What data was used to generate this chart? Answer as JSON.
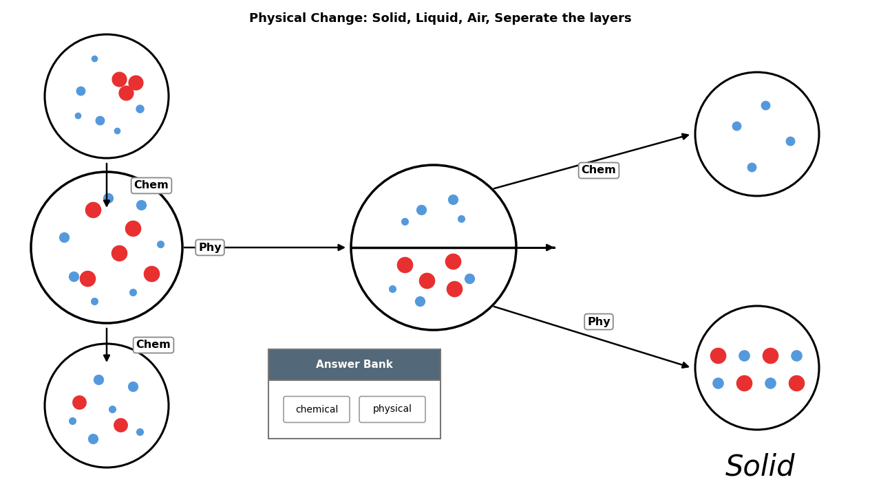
{
  "title": "Physical Change: Solid, Liquid, Air, Seperate the layers",
  "title_fontsize": 13,
  "background_color": "#ffffff",
  "red_color": "#e83030",
  "blue_color": "#5599dd",
  "answer_bank_header_color": "#536878",
  "answer_bank_header_text": "Answer Bank",
  "answer_bank_items": [
    "chemical",
    "physical"
  ],
  "fig_width": 12.8,
  "fig_height": 7.2,
  "dpi": 100
}
